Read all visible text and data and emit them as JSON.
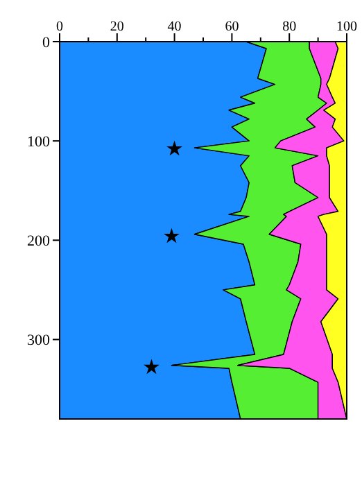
{
  "chart_data": {
    "type": "area",
    "orientation": "horizontal",
    "stacked": true,
    "x": [
      0,
      7,
      37,
      43,
      56,
      62,
      69,
      78,
      86,
      100,
      107,
      115,
      125,
      142,
      157,
      171,
      174,
      176,
      194,
      204,
      222,
      245,
      250,
      259,
      282,
      315,
      326,
      329,
      343,
      380
    ],
    "series": [
      {
        "color": "#1a8cff",
        "values": [
          65,
          72,
          69,
          75,
          63,
          68,
          59,
          66,
          60,
          66,
          47,
          66,
          63,
          66,
          65,
          63,
          59,
          66,
          47,
          64,
          66,
          68,
          57,
          63,
          65,
          68,
          39,
          59,
          60,
          63
        ]
      },
      {
        "color": "#55ee33",
        "values": [
          22,
          15,
          22,
          16,
          27,
          25,
          31,
          20,
          29,
          11,
          28,
          24,
          18,
          16,
          25,
          17,
          19,
          13,
          26,
          20,
          17,
          12,
          22,
          21,
          16,
          10,
          23,
          21,
          30,
          27
        ]
      },
      {
        "color": "#ff55ee",
        "values": [
          9,
          10,
          3,
          2,
          5,
          3,
          2,
          10,
          6,
          22,
          18,
          3,
          13,
          12,
          4,
          17,
          14,
          11,
          20,
          9,
          10,
          13,
          14,
          13,
          10,
          17,
          33,
          15,
          7,
          10
        ]
      },
      {
        "color": "#ffff22",
        "values": [
          4,
          3,
          6,
          7,
          5,
          4,
          8,
          4,
          5,
          1,
          7,
          7,
          6,
          6,
          6,
          3,
          8,
          10,
          7,
          7,
          7,
          7,
          7,
          3,
          9,
          5,
          5,
          5,
          3,
          0
        ]
      },
      {
        "type": "scatter",
        "marker": "star",
        "color": "#000000",
        "x": [
          108,
          196,
          328
        ],
        "values": [
          40,
          39,
          32
        ]
      }
    ],
    "xlim": [
      0,
      100
    ],
    "xticks": [
      0,
      {
        "value": 10,
        "label": null
      },
      20,
      {
        "value": 30,
        "label": null
      },
      40,
      {
        "value": 50,
        "label": null
      },
      60,
      {
        "value": 70,
        "label": null
      },
      80,
      {
        "value": 90,
        "label": null
      },
      100
    ],
    "ylim": [
      380,
      0
    ],
    "yticks": [
      0,
      100,
      200,
      300
    ]
  }
}
